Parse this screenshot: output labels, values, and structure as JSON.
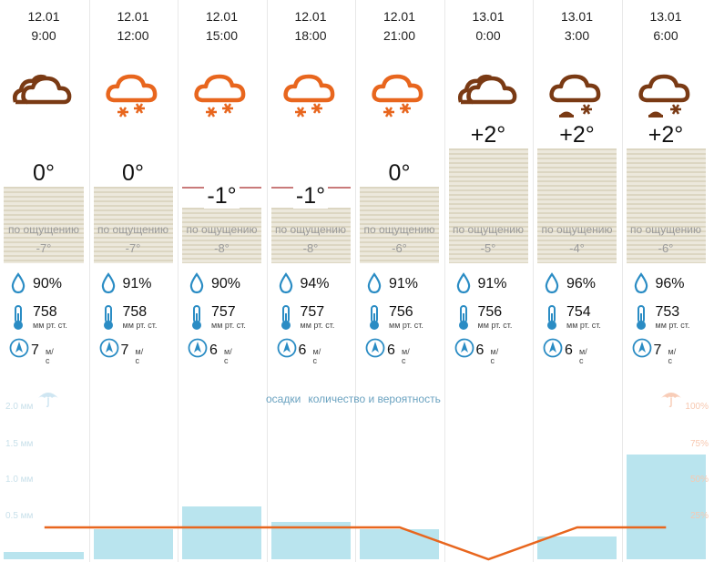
{
  "columns": [
    {
      "date": "12.01",
      "time": "9:00",
      "icon": "cloudy",
      "temp": "0°",
      "temp_value": 0,
      "feel_label": "по ощущению",
      "feel": "-7°",
      "humidity": "90%",
      "pressure": "758",
      "pressure_unit": "мм рт. ст.",
      "wind": "7",
      "wind_unit": "м/с"
    },
    {
      "date": "12.01",
      "time": "12:00",
      "icon": "cloud-snow",
      "temp": "0°",
      "temp_value": 0,
      "feel_label": "по ощущению",
      "feel": "-7°",
      "humidity": "91%",
      "pressure": "758",
      "pressure_unit": "мм рт. ст.",
      "wind": "7",
      "wind_unit": "м/с"
    },
    {
      "date": "12.01",
      "time": "15:00",
      "icon": "cloud-snow",
      "temp": "-1°",
      "temp_value": -1,
      "feel_label": "по ощущению",
      "feel": "-8°",
      "humidity": "90%",
      "pressure": "757",
      "pressure_unit": "мм рт. ст.",
      "wind": "6",
      "wind_unit": "м/с"
    },
    {
      "date": "12.01",
      "time": "18:00",
      "icon": "cloud-snow",
      "temp": "-1°",
      "temp_value": -1,
      "feel_label": "по ощущению",
      "feel": "-8°",
      "humidity": "94%",
      "pressure": "757",
      "pressure_unit": "мм рт. ст.",
      "wind": "6",
      "wind_unit": "м/с"
    },
    {
      "date": "12.01",
      "time": "21:00",
      "icon": "cloud-snow",
      "temp": "0°",
      "temp_value": 0,
      "feel_label": "по ощущению",
      "feel": "-6°",
      "humidity": "91%",
      "pressure": "756",
      "pressure_unit": "мм рт. ст.",
      "wind": "6",
      "wind_unit": "м/с"
    },
    {
      "date": "13.01",
      "time": "0:00",
      "icon": "cloudy",
      "temp": "+2°",
      "temp_value": 2,
      "feel_label": "по ощущению",
      "feel": "-5°",
      "humidity": "91%",
      "pressure": "756",
      "pressure_unit": "мм рт. ст.",
      "wind": "6",
      "wind_unit": "м/с"
    },
    {
      "date": "13.01",
      "time": "3:00",
      "icon": "cloud-snow-sleet",
      "temp": "+2°",
      "temp_value": 2,
      "feel_label": "по ощущению",
      "feel": "-4°",
      "humidity": "96%",
      "pressure": "754",
      "pressure_unit": "мм рт. ст.",
      "wind": "6",
      "wind_unit": "м/с"
    },
    {
      "date": "13.01",
      "time": "6:00",
      "icon": "cloud-snow-sleet",
      "temp": "+2°",
      "temp_value": 2,
      "feel_label": "по ощущению",
      "feel": "-6°",
      "humidity": "96%",
      "pressure": "753",
      "pressure_unit": "мм рт. ст.",
      "wind": "7",
      "wind_unit": "м/с"
    }
  ],
  "precip": {
    "legend_amount": "осадки",
    "legend_prob": "количество и вероятность",
    "left_axis": [
      "2.0 мм",
      "1.5 мм",
      "1.0 мм",
      "0.5 мм"
    ],
    "right_axis": [
      "100%",
      "75%",
      "50%",
      "25%"
    ]
  },
  "chart_data": {
    "type": "bar",
    "categories": [
      "12.01 9:00",
      "12.01 12:00",
      "12.01 15:00",
      "12.01 18:00",
      "12.01 21:00",
      "13.01 0:00",
      "13.01 3:00",
      "13.01 6:00"
    ],
    "series": [
      {
        "name": "осадки",
        "unit": "мм",
        "values": [
          0.1,
          0.4,
          0.7,
          0.5,
          0.4,
          0.0,
          0.3,
          1.4
        ]
      },
      {
        "name": "вероятность",
        "unit": "%",
        "values": [
          15,
          15,
          15,
          15,
          15,
          0,
          15,
          15
        ]
      }
    ],
    "ylim": [
      0,
      2.0
    ],
    "y2lim": [
      0,
      100
    ]
  },
  "colors": {
    "snow_icon": "#e8661e",
    "dark_icon": "#7a3a14",
    "water_icon": "#2a8cc4",
    "precip_bar": "#b9e4ee",
    "prob_line": "#e8661e"
  }
}
